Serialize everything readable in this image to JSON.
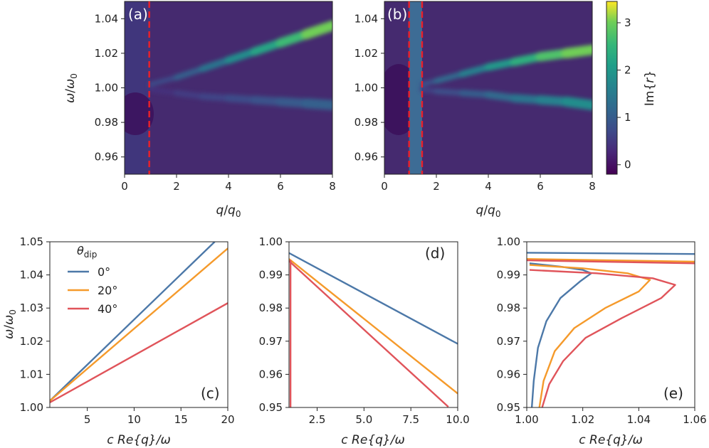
{
  "colors": {
    "blue": "#4c78a8",
    "orange": "#f59a2b",
    "red": "#e0545a",
    "dashed_line": "#e8202a",
    "axis": "#222222"
  },
  "colormap": "viridis",
  "chart_data": [
    {
      "id": "a",
      "type": "heatmap",
      "panel_label": "(a)",
      "xlabel": "q/q0",
      "ylabel": "ω/ω0",
      "xlim": [
        0,
        8
      ],
      "ylim": [
        0.95,
        1.05
      ],
      "xticks": [
        "0",
        "2",
        "4",
        "6",
        "8"
      ],
      "yticks": [
        "0.96",
        "0.98",
        "1.00",
        "1.02",
        "1.04"
      ],
      "vlines": [
        0.95
      ],
      "features": [
        {
          "name": "upper-branch",
          "q": [
            1.0,
            2,
            3,
            4,
            5,
            6,
            7,
            8
          ],
          "w": [
            1.002,
            1.006,
            1.011,
            1.016,
            1.021,
            1.026,
            1.031,
            1.036
          ],
          "peak": [
            0.6,
            0.9,
            1.2,
            1.6,
            2.0,
            2.4,
            2.8,
            3.2
          ]
        },
        {
          "name": "lower-branch",
          "q": [
            1.0,
            2,
            3,
            4,
            5,
            6,
            7,
            8
          ],
          "w": [
            0.999,
            0.997,
            0.995,
            0.994,
            0.993,
            0.992,
            0.991,
            0.99
          ],
          "peak": [
            0.3,
            0.5,
            0.6,
            0.7,
            0.8,
            0.9,
            1.0,
            1.1
          ]
        }
      ]
    },
    {
      "id": "b",
      "type": "heatmap",
      "panel_label": "(b)",
      "xlabel": "q/q0",
      "xlim": [
        0,
        8
      ],
      "ylim": [
        0.95,
        1.05
      ],
      "xticks": [
        "0",
        "2",
        "4",
        "6",
        "8"
      ],
      "yticks": [
        "0.96",
        "0.98",
        "1.00",
        "1.02",
        "1.04"
      ],
      "vlines": [
        0.95,
        1.45
      ],
      "band": [
        0.95,
        1.45
      ],
      "features": [
        {
          "name": "upper-branch",
          "q": [
            1.45,
            2,
            3,
            4,
            5,
            6,
            7,
            8
          ],
          "w": [
            1.002,
            1.004,
            1.008,
            1.012,
            1.015,
            1.018,
            1.02,
            1.022
          ],
          "peak": [
            0.7,
            1.0,
            1.4,
            1.8,
            2.2,
            2.6,
            2.9,
            3.1
          ]
        },
        {
          "name": "lower-branch",
          "q": [
            1.45,
            2,
            3,
            4,
            5,
            6,
            7,
            8
          ],
          "w": [
            0.999,
            0.998,
            0.997,
            0.996,
            0.994,
            0.993,
            0.992,
            0.99
          ],
          "peak": [
            0.5,
            0.7,
            0.9,
            1.1,
            1.3,
            1.5,
            1.7,
            1.9
          ]
        }
      ]
    },
    {
      "id": "colorbar",
      "type": "colorbar",
      "label": "Im{r}",
      "range": [
        -0.2,
        3.45
      ],
      "ticks": [
        "0",
        "1",
        "2",
        "3"
      ]
    },
    {
      "id": "c",
      "type": "line",
      "panel_label": "(c)",
      "xlabel": "c Re{q}/ω",
      "ylabel": "ω/ω0",
      "xlim": [
        1,
        20
      ],
      "ylim": [
        1.0,
        1.05
      ],
      "xticks": [
        "5",
        "10",
        "15",
        "20"
      ],
      "yticks": [
        "1.00",
        "1.01",
        "1.02",
        "1.03",
        "1.04",
        "1.05"
      ],
      "legend": {
        "title": "θdip",
        "placement": "upper-left"
      },
      "series": [
        {
          "name": "0°",
          "color": "blue",
          "x": [
            1,
            18.6
          ],
          "y": [
            1.002,
            1.05
          ]
        },
        {
          "name": "20°",
          "color": "orange",
          "x": [
            1,
            20
          ],
          "y": [
            1.002,
            1.048
          ]
        },
        {
          "name": "40°",
          "color": "red",
          "x": [
            1,
            20
          ],
          "y": [
            1.0015,
            1.0315
          ]
        }
      ]
    },
    {
      "id": "d",
      "type": "line",
      "panel_label": "(d)",
      "xlabel": "c Re{q}/ω",
      "xlim": [
        1,
        10
      ],
      "ylim": [
        0.95,
        1.0
      ],
      "xticks": [
        "2.5",
        "5.0",
        "7.5",
        "10.0"
      ],
      "yticks": [
        "0.95",
        "0.96",
        "0.97",
        "0.98",
        "0.99",
        "1.00"
      ],
      "series": [
        {
          "name": "0°",
          "color": "blue",
          "x": [
            1,
            10
          ],
          "y": [
            0.9966,
            0.9692
          ]
        },
        {
          "name": "20°",
          "color": "orange",
          "x": [
            1,
            10
          ],
          "y": [
            0.9948,
            0.9542
          ]
        },
        {
          "name": "40°",
          "color": "red",
          "x": [
            1,
            9.5
          ],
          "y": [
            0.9942,
            0.9502
          ]
        },
        {
          "name": "vertical",
          "color": "red",
          "x": [
            1.08,
            1.08
          ],
          "y": [
            0.95,
            0.9945
          ]
        }
      ]
    },
    {
      "id": "e",
      "type": "line",
      "panel_label": "(e)",
      "xlabel": "c Re{q}/ω",
      "xlim": [
        1.0,
        1.06
      ],
      "ylim": [
        0.95,
        1.0
      ],
      "xticks": [
        "1.00",
        "1.02",
        "1.04",
        "1.06"
      ],
      "yticks": [
        "0.95",
        "0.96",
        "0.97",
        "0.98",
        "0.99",
        "1.00"
      ],
      "series": [
        {
          "name": "0° upper",
          "color": "blue",
          "x": [
            1.0,
            1.06
          ],
          "y": [
            0.9967,
            0.9963
          ]
        },
        {
          "name": "20° upper",
          "color": "orange",
          "x": [
            1.0,
            1.06
          ],
          "y": [
            0.9948,
            0.994
          ]
        },
        {
          "name": "40° upper",
          "color": "red",
          "x": [
            1.0,
            1.06
          ],
          "y": [
            0.9944,
            0.9935
          ]
        },
        {
          "name": "0° loop",
          "color": "blue",
          "x": [
            1.001,
            1.012,
            1.02,
            1.023,
            1.019,
            1.012,
            1.007,
            1.004,
            1.0025,
            1.0018
          ],
          "y": [
            0.9935,
            0.9925,
            0.9915,
            0.9905,
            0.988,
            0.983,
            0.976,
            0.968,
            0.958,
            0.95
          ]
        },
        {
          "name": "20° loop",
          "color": "orange",
          "x": [
            1.001,
            1.02,
            1.036,
            1.044,
            1.04,
            1.028,
            1.017,
            1.01,
            1.006,
            1.0045
          ],
          "y": [
            0.993,
            0.992,
            0.9905,
            0.9885,
            0.985,
            0.98,
            0.974,
            0.967,
            0.958,
            0.95
          ]
        },
        {
          "name": "40° loop",
          "color": "red",
          "x": [
            1.001,
            1.025,
            1.045,
            1.053,
            1.048,
            1.034,
            1.021,
            1.013,
            1.008,
            1.0055
          ],
          "y": [
            0.9915,
            0.9905,
            0.989,
            0.987,
            0.983,
            0.977,
            0.971,
            0.964,
            0.957,
            0.95
          ]
        }
      ]
    }
  ]
}
